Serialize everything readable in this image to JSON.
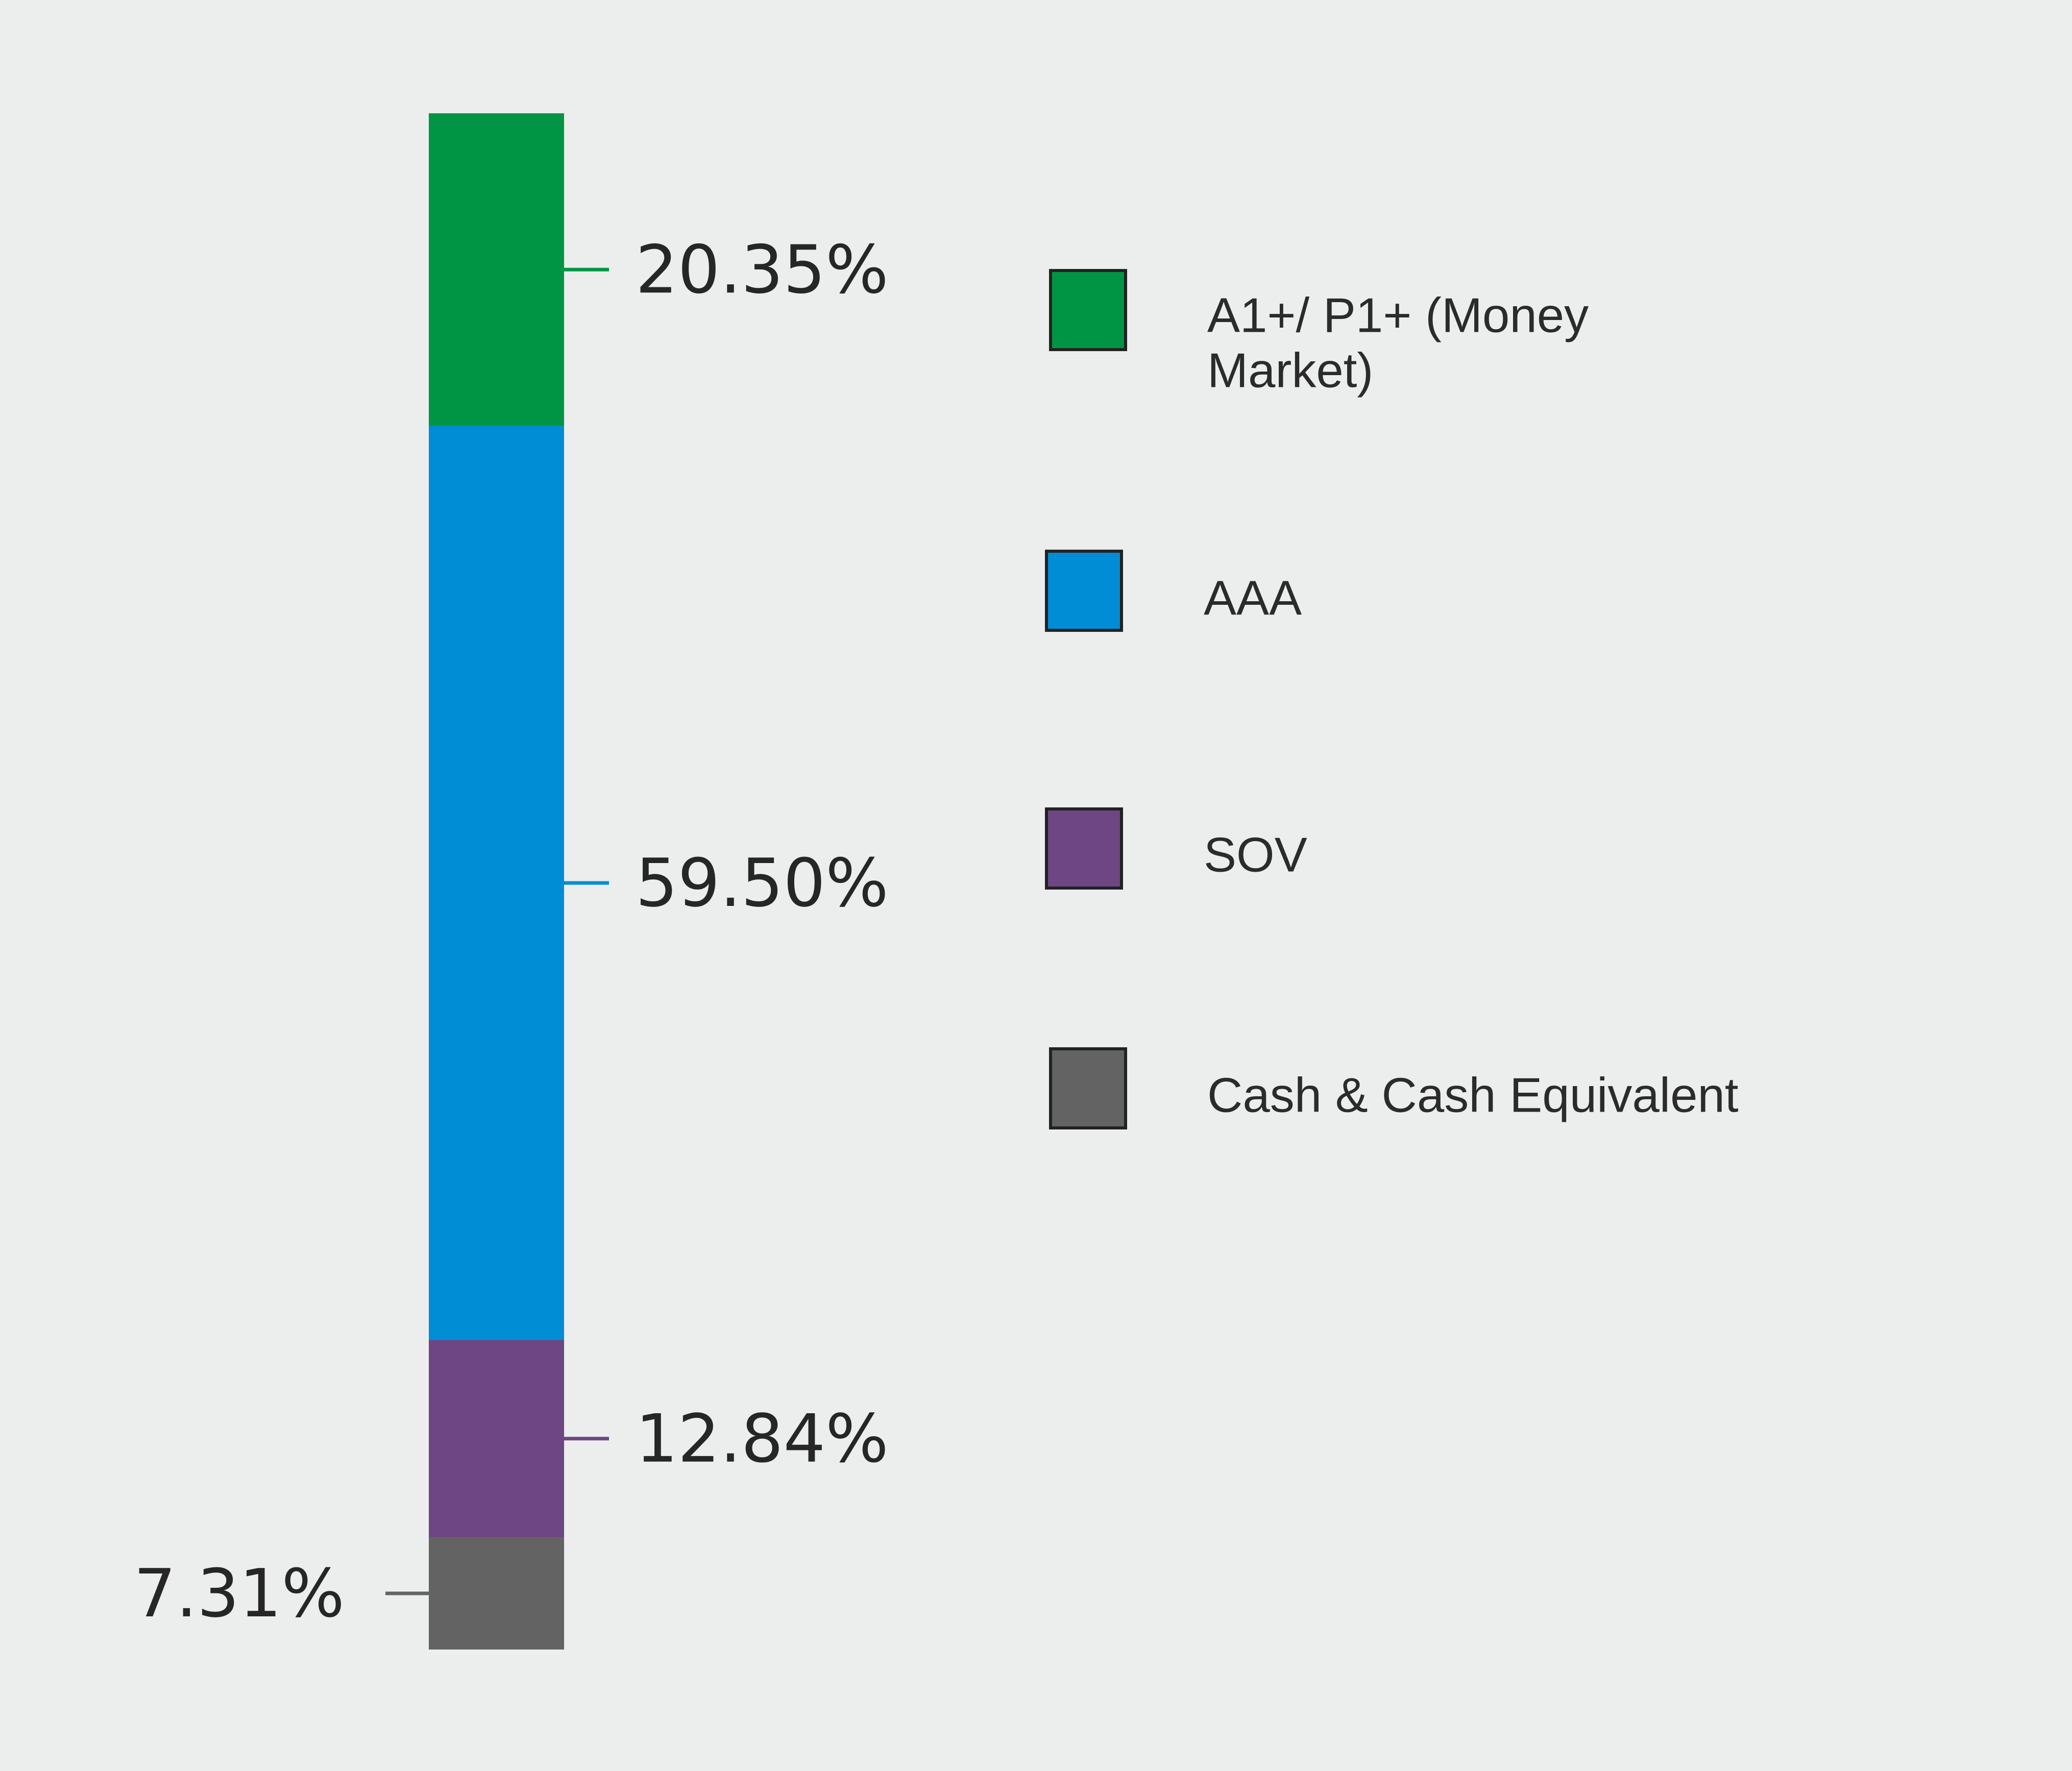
{
  "chart_data": {
    "type": "bar",
    "stacked": true,
    "orientation": "vertical",
    "title": "",
    "xlabel": "",
    "ylabel": "",
    "ylim": [
      0,
      100
    ],
    "grid": false,
    "legend_position": "right",
    "categories": [
      ""
    ],
    "series": [
      {
        "name": "A1+/ P1+ (Money Market)",
        "values": [
          20.35
        ],
        "label": "20.35%",
        "color": "#009544",
        "legend_lines": [
          "A1+/ P1+ (Money",
          "Market)"
        ]
      },
      {
        "name": "AAA",
        "values": [
          59.5
        ],
        "label": "59.50%",
        "color": "#008dd6",
        "legend_lines": [
          "AAA"
        ]
      },
      {
        "name": "SOV",
        "values": [
          12.84
        ],
        "label": "12.84%",
        "color": "#6f4684",
        "legend_lines": [
          "SOV"
        ]
      },
      {
        "name": "Cash & Cash Equivalent",
        "values": [
          7.31
        ],
        "label": "7.31%",
        "color": "#636363",
        "legend_lines": [
          "Cash & Cash Equivalent"
        ]
      }
    ]
  }
}
